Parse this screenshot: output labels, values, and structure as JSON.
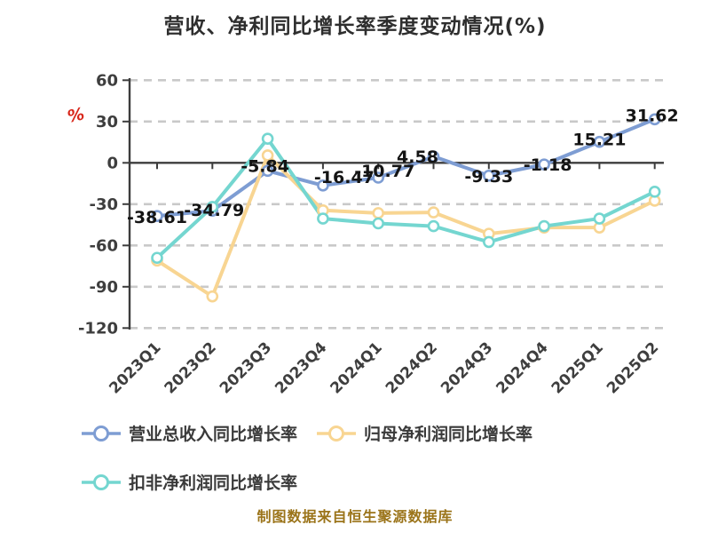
{
  "title": "营收、净利同比增长率季度变动情况(%)",
  "y_axis_unit": "%",
  "caption": "制图数据来自恒生聚源数据库",
  "chart_data": {
    "type": "line",
    "title": "营收、净利同比增长率季度变动情况(%)",
    "categories": [
      "2023Q1",
      "2023Q2",
      "2023Q3",
      "2023Q4",
      "2024Q1",
      "2024Q2",
      "2024Q3",
      "2024Q4",
      "2025Q1",
      "2025Q2"
    ],
    "series": [
      {
        "name": "营业总收入同比增长率",
        "color": "#7e9dd3",
        "values": [
          -38.61,
          -34.79,
          -5.84,
          -16.47,
          -10.77,
          4.58,
          -9.33,
          -1.18,
          15.21,
          31.62
        ],
        "data_labels": true
      },
      {
        "name": "归母净利润同比增长率",
        "color": "#f8d592",
        "values": [
          -71,
          -97,
          5.4,
          -34.5,
          -36.5,
          -36,
          -51.5,
          -47,
          -47,
          -27.5
        ],
        "data_labels": false
      },
      {
        "name": "扣非净利润同比增长率",
        "color": "#74d6d0",
        "values": [
          -69,
          -32,
          17.5,
          -40.5,
          -44,
          -46,
          -57.5,
          -46,
          -40.5,
          -21
        ],
        "data_labels": false
      }
    ],
    "ylim": [
      -120,
      60
    ],
    "y_ticks": [
      60,
      30,
      0,
      -30,
      -60,
      -90,
      -120
    ],
    "xlabel": "",
    "ylabel": "%",
    "grid": "horizontal-dashed",
    "legend_position": "bottom-left"
  },
  "colors": {
    "background": "#ffffff",
    "axis": "#3d3d3d",
    "grid": "#c9c9c9",
    "tick_text": "#3e3e3e",
    "data_label": "#141414",
    "title": "#2e2e2e",
    "caption": "#9b741a",
    "unit": "#d8281c",
    "marker_fill": "#ffffff"
  }
}
